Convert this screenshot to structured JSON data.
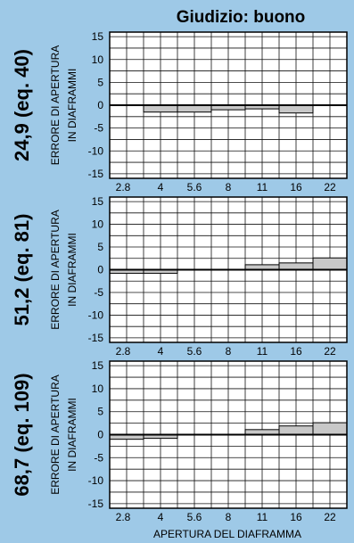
{
  "title": "Giudizio: buono",
  "xlabel": "APERTURA DEL DIAFRAMMA",
  "ylabel_line1": "ERRORE DI APERTURA",
  "ylabel_line2": "IN DIAFRAMMI",
  "colors": {
    "background": "#9ec9e7",
    "plot_background": "#ffffff",
    "bar_fill": "#c8c8c8",
    "line": "#000000"
  },
  "chart_data": [
    {
      "type": "bar",
      "panel_label": "24,9 (eq. 40)",
      "categories": [
        "2.8",
        "4",
        "5.6",
        "8",
        "11",
        "16",
        "22"
      ],
      "values": [
        0.1,
        -1.5,
        -1.5,
        -1.0,
        -0.8,
        -1.7,
        0.1
      ],
      "y_ticks": [
        15,
        10,
        5,
        0,
        -5,
        -10,
        -15
      ],
      "ylim": [
        -16,
        16
      ],
      "grid": true
    },
    {
      "type": "bar",
      "panel_label": "51,2 (eq. 81)",
      "categories": [
        "2.8",
        "4",
        "5.6",
        "8",
        "11",
        "16",
        "22"
      ],
      "values": [
        -0.8,
        -0.8,
        0.1,
        0.1,
        1.1,
        1.5,
        2.6
      ],
      "y_ticks": [
        15,
        10,
        5,
        0,
        -5,
        -10,
        -15
      ],
      "ylim": [
        -16,
        16
      ],
      "grid": true
    },
    {
      "type": "bar",
      "panel_label": "68,7 (eq. 109)",
      "categories": [
        "2.8",
        "4",
        "5.6",
        "8",
        "11",
        "16",
        "22"
      ],
      "values": [
        -1.0,
        -0.8,
        0.1,
        0.1,
        1.1,
        1.9,
        2.6
      ],
      "y_ticks": [
        15,
        10,
        5,
        0,
        -5,
        -10,
        -15
      ],
      "ylim": [
        -16,
        16
      ],
      "grid": true
    }
  ]
}
